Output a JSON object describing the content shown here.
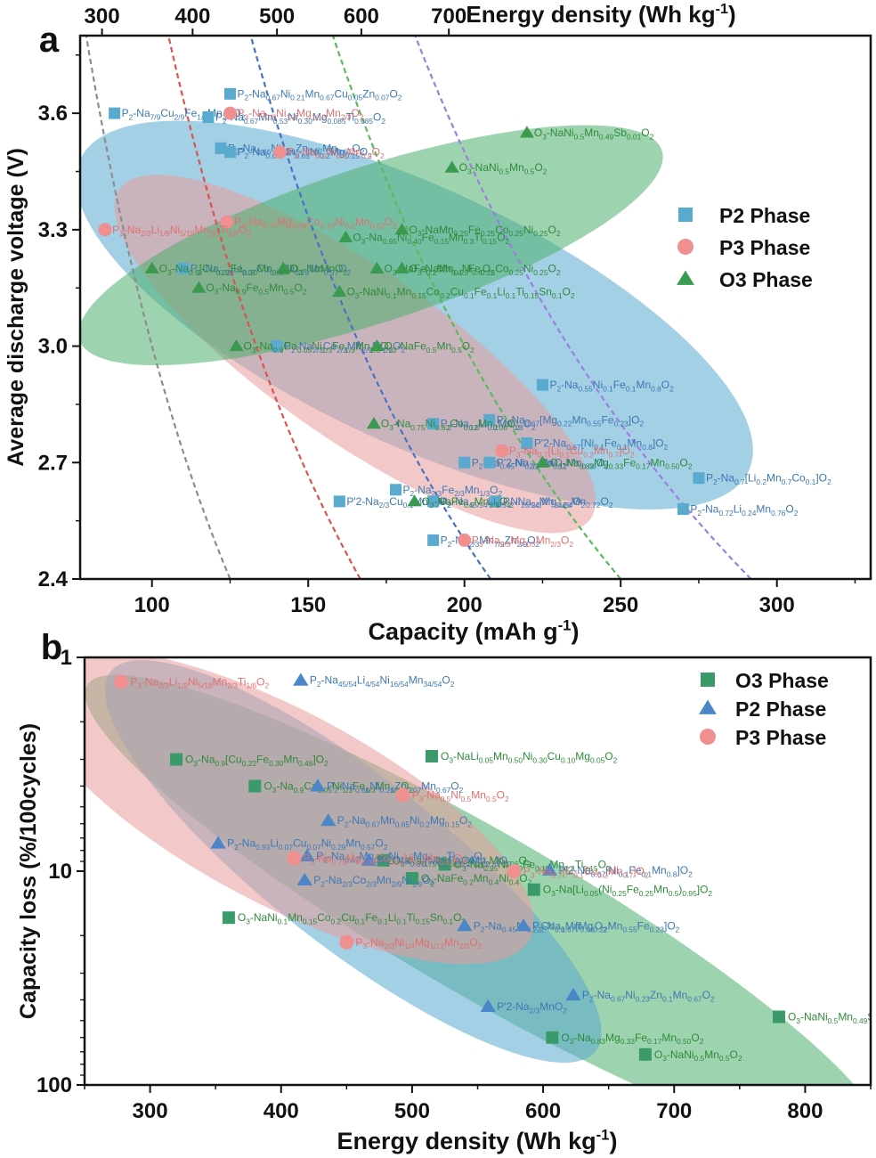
{
  "chart_data": [
    {
      "type": "scatter",
      "panel_label": "a",
      "xlabel": "Capacity (mAh g",
      "xlabel_sup": "-1",
      "xlabel_tail": ")",
      "ylabel": "Average discharge voltage (V)",
      "top_xlabel": "Energy density (Wh kg",
      "top_xlabel_sup": "-1",
      "top_xlabel_tail": ")",
      "xlim": [
        77,
        330
      ],
      "ylim": [
        2.4,
        3.8
      ],
      "x_ticks": [
        "100",
        "150",
        "200",
        "250",
        "300"
      ],
      "x_tick_values": [
        100,
        150,
        200,
        250,
        300
      ],
      "y_ticks": [
        "2.4",
        "2.7",
        "3.0",
        "3.3",
        "3.6"
      ],
      "y_tick_values": [
        2.4,
        2.7,
        3.0,
        3.3,
        3.6
      ],
      "top_ticks": [
        "300",
        "400",
        "500",
        "600",
        "700"
      ],
      "top_tick_capacity_at_top": [
        84,
        113,
        140,
        167,
        195
      ],
      "top_tick_colors": [
        "#8c8c8c",
        "#d9534f",
        "#4a72c4",
        "#5cb85c",
        "#9b7fe0"
      ],
      "iso_energy_lines": [
        {
          "energy": 300,
          "color": "#8c8c8c"
        },
        {
          "energy": 400,
          "color": "#d9534f"
        },
        {
          "energy": 500,
          "color": "#4a72c4"
        },
        {
          "energy": 600,
          "color": "#5cb85c"
        },
        {
          "energy": 700,
          "color": "#9b7fe0"
        }
      ],
      "ellipses": [
        {
          "name": "P2",
          "color": "#5aaad0",
          "cx": 184,
          "cy": 3.08,
          "rx_cap": 118,
          "ry_v": 0.33,
          "angle": 25
        },
        {
          "name": "P3",
          "color": "#e89a9a",
          "cx": 165,
          "cy": 2.98,
          "rx_cap": 92,
          "ry_v": 0.22,
          "angle": 35
        },
        {
          "name": "O3",
          "color": "#4caf6e",
          "cx": 170,
          "cy": 3.26,
          "rx_cap": 98,
          "ry_v": 0.2,
          "angle": -18
        }
      ],
      "legend": [
        {
          "label": "P2 Phase",
          "marker": "square",
          "color": "#5aaad0"
        },
        {
          "label": "P3 Phase",
          "marker": "circle",
          "color": "#ef8f8f"
        },
        {
          "label": "O3 Phase",
          "marker": "triangle",
          "color": "#3a9a4f"
        }
      ],
      "series": [
        {
          "name": "P2 Phase",
          "marker": "square",
          "color": "#5aaad0",
          "text_color": "#3d78b3",
          "points": [
            {
              "x": 88,
              "y": 3.6,
              "label": "P2-Na7/9Cu2/9Fe1/9Mn2/3O2"
            },
            {
              "x": 125,
              "y": 3.65,
              "label": "P2-Na0.67Ni0.21Mn0.67Cu0.05Zn0.07O2"
            },
            {
              "x": 118,
              "y": 3.59,
              "label": "P2-Na0.67Mn0.53Ni0.30Mg0.085Ti0.085O2"
            },
            {
              "x": 122,
              "y": 3.51,
              "label": "P2-Na0.66Ni0.26Zn0.07Mn0.67O2"
            },
            {
              "x": 125,
              "y": 3.5,
              "label": "P2-Na0.67Mn0.65Ni0.2Mg0.15O2"
            },
            {
              "x": 110,
              "y": 3.2,
              "label": "P2-Na0.93Li0.07Cu0.07Ni0.29Mn0.57O2"
            },
            {
              "x": 140,
              "y": 3.0,
              "label": "P2-Na2/3Co2/3Mn2/9Ni1/9O2"
            },
            {
              "x": 225,
              "y": 2.9,
              "label": "P2-Na0.55Ni0.1Fe0.1Mn0.8O2"
            },
            {
              "x": 190,
              "y": 2.8,
              "label": "P2-Na0.6Li0.2Mn0.8O2"
            },
            {
              "x": 208,
              "y": 2.81,
              "label": "P2-Na0.67[Mg0.22Mn0.55Fe0.23]O2"
            },
            {
              "x": 220,
              "y": 2.75,
              "label": "P'2-Na0.67[Ni0.1Fe0.1Mn0.8]O2"
            },
            {
              "x": 200,
              "y": 2.7,
              "label": "P2-Na0.45Ni0.22Co0.11Mn0.66O2"
            },
            {
              "x": 208,
              "y": 2.7,
              "label": "P'2-Na2/3MnO2"
            },
            {
              "x": 160,
              "y": 2.6,
              "label": "P'2-Na2/3Cu0.1Mn0.9O2"
            },
            {
              "x": 178,
              "y": 2.63,
              "label": "P2-Na2/3Fe2/3Mn1/3O2"
            },
            {
              "x": 210,
              "y": 2.6,
              "label": "P2-Na2/3Mg0.28Mn0.72O2"
            },
            {
              "x": 190,
              "y": 2.6,
              "label": "P2-Na45/54Li4/54Ni16/54Mn34/54O2"
            },
            {
              "x": 275,
              "y": 2.66,
              "label": "P2-Na0.7[Li0.2Mn0.7Co0.1]O2"
            },
            {
              "x": 270,
              "y": 2.58,
              "label": "P2-Na0.72Li0.24Mn0.76O2"
            },
            {
              "x": 190,
              "y": 2.5,
              "label": "P2-Na2/3Mn7/9Zn2/9O2"
            }
          ]
        },
        {
          "name": "P3 Phase",
          "marker": "circle",
          "color": "#ef8f8f",
          "text_color": "#e07070",
          "points": [
            {
              "x": 125,
              "y": 3.6,
              "label": "P3-Na2/3Ni1/4Mg1/12Mn2/3O2"
            },
            {
              "x": 141,
              "y": 3.5,
              "label": "P3-Na0.5Ni0.5Mn0.5O2"
            },
            {
              "x": 124,
              "y": 3.32,
              "label": "P3-Na0.75Mg0.08Co0.10Ni0.2Mn0.62O2"
            },
            {
              "x": 85,
              "y": 3.3,
              "label": "P3-Na2/3Li1/9Ni5/18Mn2/3Ti1/6O2"
            },
            {
              "x": 212,
              "y": 2.73,
              "label": "P3-Na0.7[Li0.1Cu0.2Mn0.7]O2"
            },
            {
              "x": 200,
              "y": 2.5,
              "label": "P3-Na2/3Mg1/3Mn2/3O2"
            }
          ]
        },
        {
          "name": "O3 Phase",
          "marker": "triangle",
          "color": "#3a9a4f",
          "text_color": "#2f8a3a",
          "points": [
            {
              "x": 220,
              "y": 3.55,
              "label": "O3-NaNi0.5Mn0.49Sb0.01O2"
            },
            {
              "x": 196,
              "y": 3.46,
              "label": "O3-NaNi0.5Mn0.5O2"
            },
            {
              "x": 180,
              "y": 3.3,
              "label": "O3-NaMn0.25Fe0.25Co0.25Ni0.25O2"
            },
            {
              "x": 162,
              "y": 3.28,
              "label": "O3-Na0.95Ni0.40Fe0.15Mn0.3Ti0.15O2"
            },
            {
              "x": 142,
              "y": 3.2,
              "label": "O3-NaMnO2"
            },
            {
              "x": 172,
              "y": 3.2,
              "label": "O3-NaFe0.2Mn0.4Ni0.4O2"
            },
            {
              "x": 180,
              "y": 3.2,
              "label": "O3-NaMn0.25Fe0.25Co0.25Ni0.25O2"
            },
            {
              "x": 100,
              "y": 3.2,
              "label": "O3-Na0.9[Cu0.22Fe0.30Mn0.48]O2"
            },
            {
              "x": 115,
              "y": 3.15,
              "label": "O3-Na0.9Fe0.5Mn0.5O2"
            },
            {
              "x": 160,
              "y": 3.14,
              "label": "O3-NaNi0.1Mn0.15Co0.2Cu0.1Fe0.1Li0.1Ti0.15Sn0.1O2"
            },
            {
              "x": 127,
              "y": 3.0,
              "label": "O3-Na0.9Ca0.05Ni1/3Fe1/3Mn1/3O2"
            },
            {
              "x": 172,
              "y": 3.0,
              "label": "O3-NaFe0.5Mn0.5O2"
            },
            {
              "x": 171,
              "y": 2.8,
              "label": "O3-Na0.75Ni0.82Co0.12Mn0.06O2"
            },
            {
              "x": 225,
              "y": 2.7,
              "label": "O3-Na0.83Mg0.33Fe0.17Mn0.50O2"
            },
            {
              "x": 184,
              "y": 2.6,
              "label": "O3-NaFe0.5Mn0.5O2"
            }
          ]
        }
      ]
    },
    {
      "type": "scatter",
      "panel_label": "b",
      "xlabel": "Energy density (Wh kg",
      "xlabel_sup": "-1",
      "xlabel_tail": ")",
      "ylabel": "Capacity loss (%/100cycles)",
      "xlim": [
        250,
        850
      ],
      "ylim_log": [
        1,
        100
      ],
      "y_axis": "log, inverted (1 at top, 100 at bottom)",
      "x_ticks": [
        "300",
        "400",
        "500",
        "600",
        "700",
        "800"
      ],
      "x_tick_values": [
        300,
        400,
        500,
        600,
        700,
        800
      ],
      "y_ticks": [
        "1",
        "10",
        "100"
      ],
      "y_tick_values": [
        1,
        10,
        100
      ],
      "ellipses": [
        {
          "name": "O3",
          "color": "#4caf6e",
          "cx": 555,
          "cy": 16,
          "rx_x": 350,
          "ry_dec": 0.38,
          "angle": 30
        },
        {
          "name": "P2",
          "color": "#5aaad0",
          "cx": 455,
          "cy": 9,
          "rx_x": 235,
          "ry_dec": 0.4,
          "angle": 38
        },
        {
          "name": "P3",
          "color": "#e89a9a",
          "cx": 400,
          "cy": 5,
          "rx_x": 215,
          "ry_dec": 0.45,
          "angle": 28
        }
      ],
      "legend": [
        {
          "label": "O3 Phase",
          "marker": "square",
          "color": "#3a9a6a"
        },
        {
          "label": "P2 Phase",
          "marker": "triangle",
          "color": "#4a86c8"
        },
        {
          "label": "P3 Phase",
          "marker": "circle",
          "color": "#ef8f8f"
        }
      ],
      "series": [
        {
          "name": "O3 Phase",
          "marker": "square",
          "color": "#3a9a6a",
          "text_color": "#2f8a3a",
          "points": [
            {
              "x": 320,
              "y": 3.0,
              "label": "O3-Na0.9[Cu0.22Fe0.30Mn0.48]O2"
            },
            {
              "x": 380,
              "y": 4.0,
              "label": "O3-Na0.9Ca0.05Ni1/3Fe1/3Mn1/3O2"
            },
            {
              "x": 515,
              "y": 2.9,
              "label": "O3-NaLi0.05Mn0.50Ni0.30Cu0.10Mg0.05O2"
            },
            {
              "x": 478,
              "y": 8.9,
              "label": "O3-Na0.75Ni0.82Co0.12Mn0.06O2"
            },
            {
              "x": 500,
              "y": 10.8,
              "label": "O3-NaFe0.2Mn0.4Ni0.4O2"
            },
            {
              "x": 525,
              "y": 9.3,
              "label": "O3-Na0.95Ni0.40Fe0.15Mn0.3Ti0.15O2"
            },
            {
              "x": 593,
              "y": 12.2,
              "label": "O3-Na[Li0.05(Ni0.25Fe0.25Mn0.5)0.95]O2"
            },
            {
              "x": 360,
              "y": 16.5,
              "label": "O3-NaNi0.1Mn0.15Co0.2Cu0.1Fe0.1Li0.1Ti0.15Sn0.1O2"
            },
            {
              "x": 780,
              "y": 48,
              "label": "O3-NaNi0.5Mn0.49Sb0.01O2"
            },
            {
              "x": 607,
              "y": 60,
              "label": "O3-Na0.83Mg0.33Fe0.17Mn0.50O2"
            },
            {
              "x": 678,
              "y": 72,
              "label": "O3-NaNi0.5Mn0.5O2"
            }
          ]
        },
        {
          "name": "P2 Phase",
          "marker": "triangle",
          "color": "#4a86c8",
          "text_color": "#3d78b3",
          "points": [
            {
              "x": 415,
              "y": 1.28,
              "label": "P2-Na45/54Li4/54Ni16/54Mn34/54O2"
            },
            {
              "x": 428,
              "y": 4.0,
              "label": "P2-Na0.66Ni0.26Zn0.07Mn0.67O2"
            },
            {
              "x": 436,
              "y": 5.8,
              "label": "P2-Na0.67Mn0.65Ni0.2Mg0.15O2"
            },
            {
              "x": 352,
              "y": 7.4,
              "label": "P2-Na0.93Li0.07Cu0.07Ni0.29Mn0.57O2"
            },
            {
              "x": 420,
              "y": 8.5,
              "label": "P2-Na0.67Mn0.53Ni0.30Mg0.085Ti0.085O2"
            },
            {
              "x": 467,
              "y": 8.9,
              "label": "P'2-Na0.67[Ni0.1Fe0.1Mn0.8]O2"
            },
            {
              "x": 418,
              "y": 11.0,
              "label": "P2-Na2/3Co2/3Mn2/9Ni1/9O2"
            },
            {
              "x": 605,
              "y": 9.9,
              "label": "P'2-Na0.67[Ni0.1Fe0.1Mn0.8]O2"
            },
            {
              "x": 540,
              "y": 18.0,
              "label": "P2-Na0.45Ni0.22Co0.1Mn0.66O2"
            },
            {
              "x": 585,
              "y": 18.0,
              "label": "P2-Na0.67[Mg0.22Mn0.55Fe0.23]O2"
            },
            {
              "x": 623,
              "y": 38.0,
              "label": "P2-Na0.67Ni0.23Zn0.1Mn0.67O2"
            },
            {
              "x": 558,
              "y": 43.0,
              "label": "P'2-Na2/3MnO2"
            }
          ]
        },
        {
          "name": "P3 Phase",
          "marker": "circle",
          "color": "#ef8f8f",
          "text_color": "#e07070",
          "points": [
            {
              "x": 278,
              "y": 1.3,
              "label": "P3-Na2/3Li1/9Ni5/18Mn2/3Ti1/6O2"
            },
            {
              "x": 493,
              "y": 4.4,
              "label": "P3-Na0.5Ni0.5Mn0.5O2"
            },
            {
              "x": 410,
              "y": 8.7,
              "label": "P3-Na0.75Mg0.08Co0.10Ni0.2Mn0.62O2"
            },
            {
              "x": 578,
              "y": 10.0,
              "label": "P3-Na0.7[Li0.1Cu0.2Mn0.7]O2"
            },
            {
              "x": 450,
              "y": 21.5,
              "label": "P3-Na2/3Ni1/4Mg1/12Mn2/3O2"
            }
          ]
        }
      ]
    }
  ]
}
